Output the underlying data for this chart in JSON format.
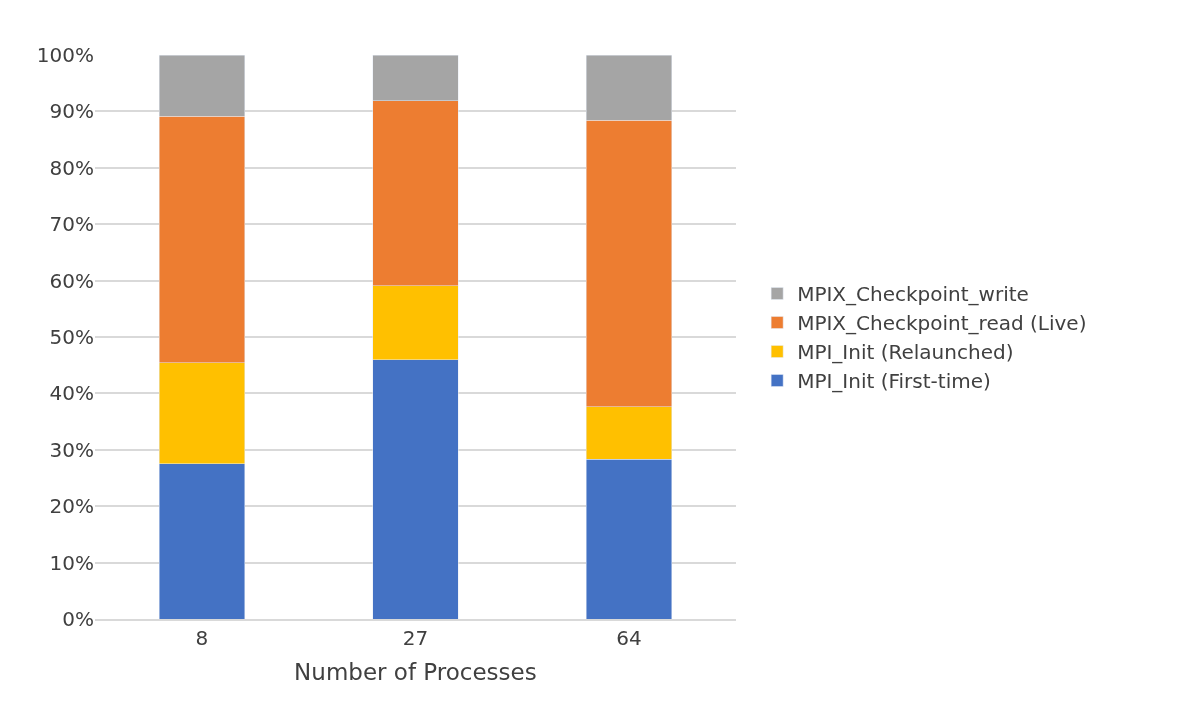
{
  "chart_data": {
    "type": "bar",
    "stacked": true,
    "xlabel": "Number of Processes",
    "categories": [
      "8",
      "27",
      "64"
    ],
    "series": [
      {
        "name": "MPI_Init (First-time)",
        "color": "#4472c4",
        "values": [
          27.5,
          46,
          28.3
        ]
      },
      {
        "name": "MPI_Init (Relaunched)",
        "color": "#ffc000",
        "values": [
          17.9,
          13.1,
          9.3
        ]
      },
      {
        "name": "MPIX_Checkpoint_read (Live)",
        "color": "#ed7d31",
        "values": [
          43.7,
          32.8,
          50.8
        ]
      },
      {
        "name": "MPIX_Checkpoint_write",
        "color": "#a5a5a5",
        "values": [
          10.9,
          8.1,
          11.6
        ]
      }
    ],
    "ylim": [
      0,
      100
    ],
    "yticks": [
      {
        "value": 0,
        "label": "0%"
      },
      {
        "value": 10,
        "label": "10%"
      },
      {
        "value": 20,
        "label": "20%"
      },
      {
        "value": 30,
        "label": "30%"
      },
      {
        "value": 40,
        "label": "40%"
      },
      {
        "value": 50,
        "label": "50%"
      },
      {
        "value": 60,
        "label": "60%"
      },
      {
        "value": 70,
        "label": "70%"
      },
      {
        "value": 80,
        "label": "80%"
      },
      {
        "value": 90,
        "label": "90%"
      },
      {
        "value": 100,
        "label": "100%"
      }
    ],
    "grid": "y",
    "legend": "right"
  }
}
